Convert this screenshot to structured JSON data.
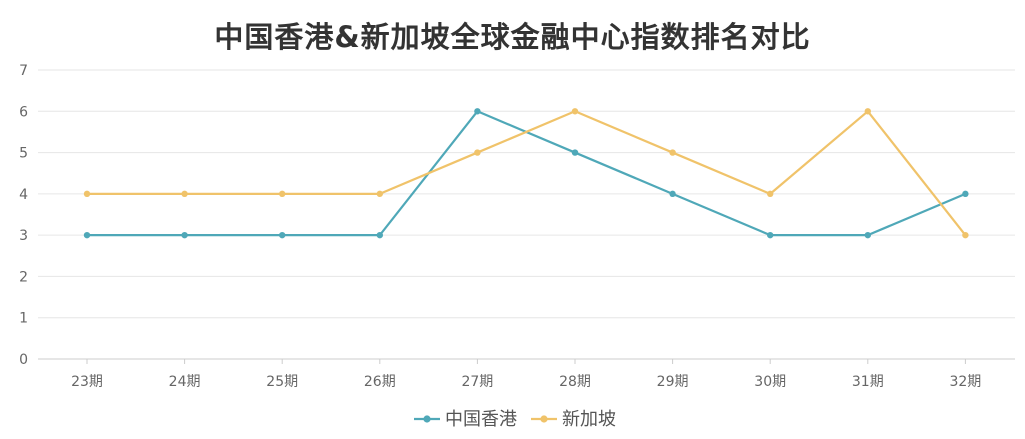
{
  "chart_data": {
    "type": "line",
    "title": "中国香港&新加坡全球金融中心指数排名对比",
    "categories": [
      "23期",
      "24期",
      "25期",
      "26期",
      "27期",
      "28期",
      "29期",
      "30期",
      "31期",
      "32期"
    ],
    "series": [
      {
        "name": "中国香港",
        "color": "#4fa8b8",
        "values": [
          3,
          3,
          3,
          3,
          6,
          5,
          4,
          3,
          3,
          4
        ]
      },
      {
        "name": "新加坡",
        "color": "#f0c36a",
        "values": [
          4,
          4,
          4,
          4,
          5,
          6,
          5,
          4,
          6,
          3
        ]
      }
    ],
    "ylim": [
      0,
      7
    ],
    "yticks": [
      0,
      1,
      2,
      3,
      4,
      5,
      6,
      7
    ],
    "grid": true,
    "legend_position": "bottom"
  }
}
